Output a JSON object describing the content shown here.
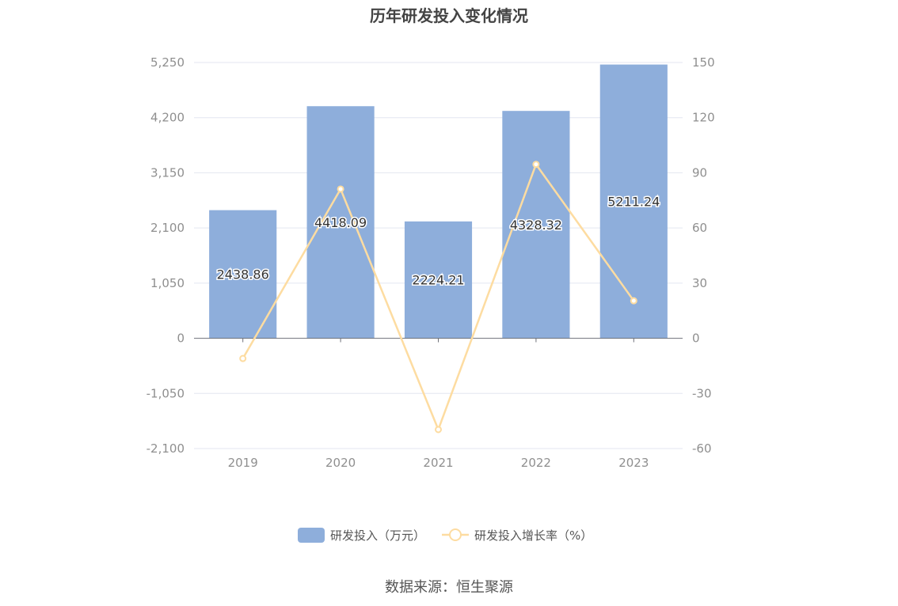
{
  "chart_data": {
    "type": "bar",
    "title": "历年研发投入变化情况",
    "categories": [
      "2019",
      "2020",
      "2021",
      "2022",
      "2023"
    ],
    "series": [
      {
        "name": "研发投入（万元）",
        "type": "bar",
        "axis": "left",
        "color": "#8eaedb",
        "values": [
          2438.86,
          4418.09,
          2224.21,
          4328.32,
          5211.24
        ],
        "labels": [
          "2438.86",
          "4418.09",
          "2224.21",
          "4328.32",
          "5211.24"
        ]
      },
      {
        "name": "研发投入增长率（%）",
        "type": "line",
        "axis": "right",
        "color": "#fddca1",
        "values": [
          -11.0,
          81.15,
          -49.66,
          94.6,
          20.4
        ]
      }
    ],
    "y_left": {
      "min": -2100,
      "max": 5250,
      "ticks": [
        5250,
        4200,
        3150,
        2100,
        1050,
        0,
        -1050,
        -2100
      ],
      "tick_labels": [
        "5,250",
        "4,200",
        "3,150",
        "2,100",
        "1,050",
        "0",
        "-1,050",
        "-2,100"
      ]
    },
    "y_right": {
      "min": -60,
      "max": 150,
      "ticks": [
        150,
        120,
        90,
        60,
        30,
        0,
        -30,
        -60
      ],
      "tick_labels": [
        "150",
        "120",
        "90",
        "60",
        "30",
        "0",
        "-30",
        "-60"
      ]
    },
    "grid": true,
    "legend_position": "bottom"
  },
  "source": "数据来源：恒生聚源"
}
